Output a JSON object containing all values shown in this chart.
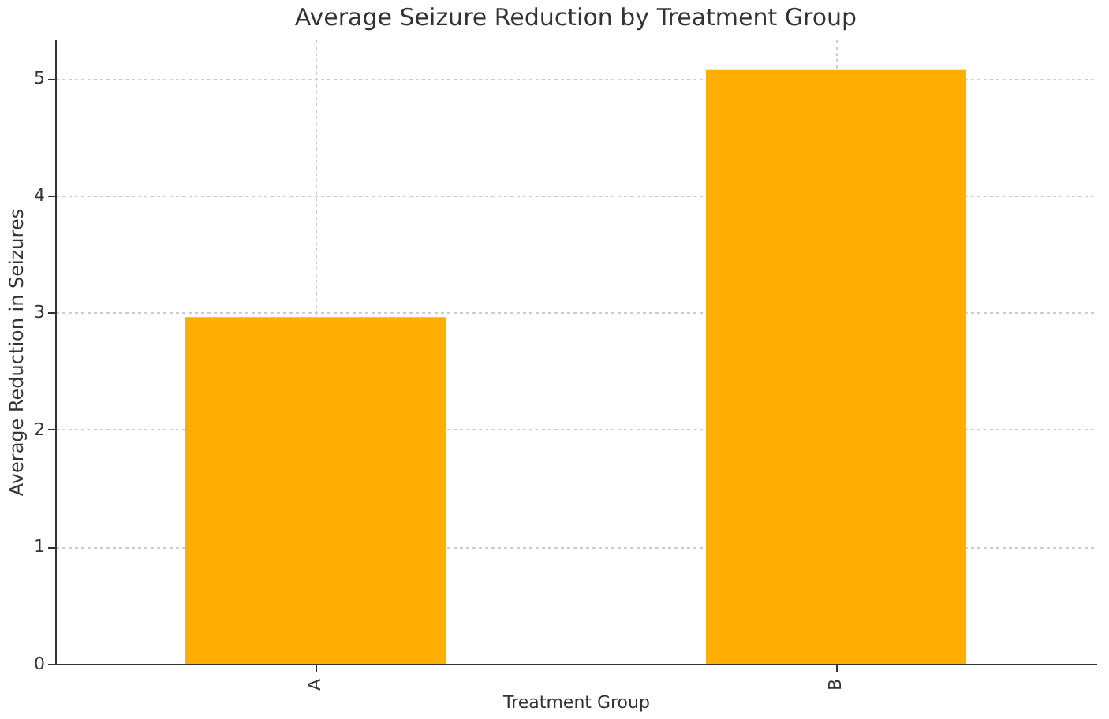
{
  "chart_data": {
    "type": "bar",
    "title": "Average Seizure Reduction by Treatment Group",
    "xlabel": "Treatment Group",
    "ylabel": "Average Reduction in Seizures",
    "categories": [
      "A",
      "B"
    ],
    "values": [
      2.96,
      5.07
    ],
    "color": "#ffad00",
    "ylim": [
      0,
      5.33
    ],
    "yticks": [
      0,
      1,
      2,
      3,
      4,
      5
    ],
    "grid": true
  }
}
